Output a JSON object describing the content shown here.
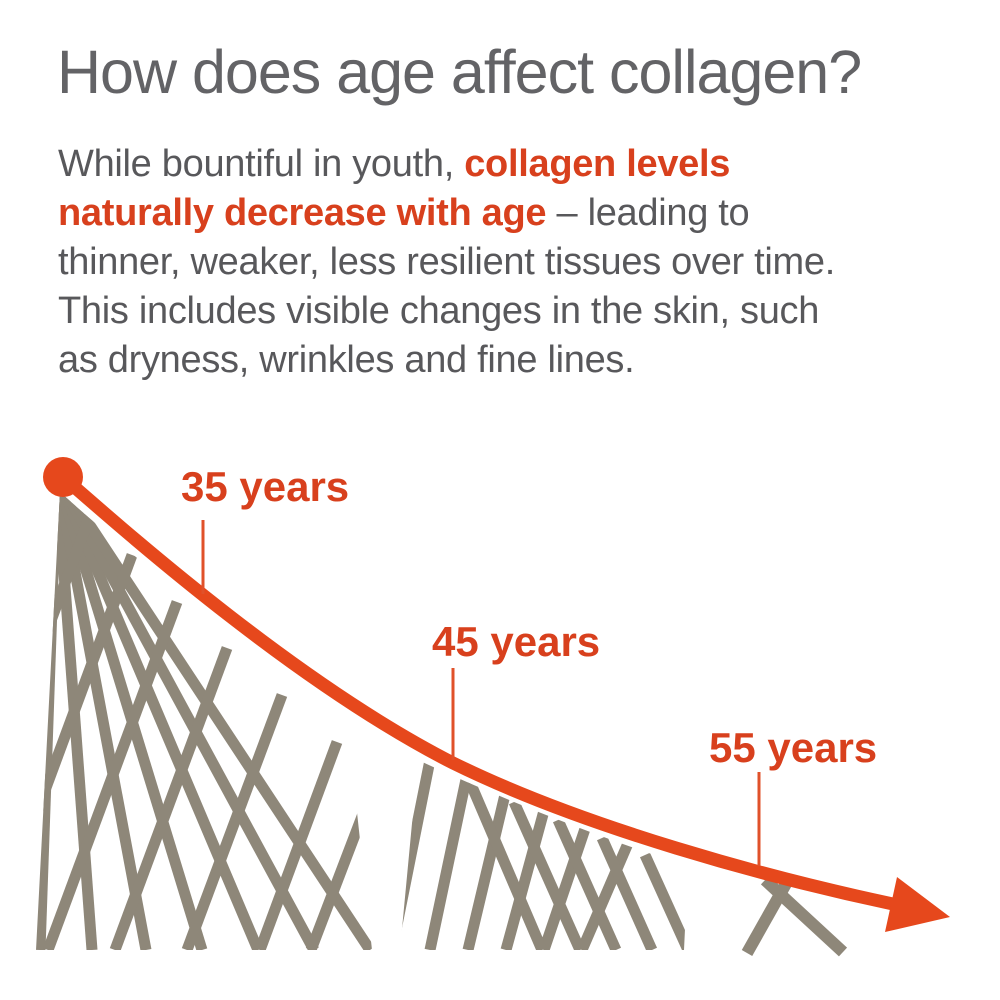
{
  "page": {
    "background": "#ffffff"
  },
  "heading": {
    "text": "How does age affect collagen?"
  },
  "intro": {
    "lines": [
      [
        {
          "t": "While bountiful in youth, ",
          "b": false
        },
        {
          "t": "collagen levels",
          "b": true
        }
      ],
      [
        {
          "t": "naturally decrease with age",
          "b": true
        },
        {
          "t": " – leading to",
          "b": false
        }
      ],
      [
        {
          "t": "thinner, weaker, less resilient tissues over time.",
          "b": false
        }
      ],
      [
        {
          "t": "This includes visible changes in the skin, such",
          "b": false
        }
      ],
      [
        {
          "t": "as dryness, wrinkles and fine lines.",
          "b": false
        }
      ]
    ]
  },
  "chart": {
    "labels": [
      {
        "text": "35 years"
      },
      {
        "text": "45 years"
      },
      {
        "text": "55 years"
      }
    ],
    "colors": {
      "accent_orange": "#e6481c",
      "label_orange": "#d8401d",
      "mesh_gray": "#8e8779",
      "heading_gray": "#636366",
      "body_gray": "#58585b"
    }
  },
  "chart_data": {
    "type": "line",
    "title": "Collagen level declining with age",
    "x_annotations": [
      "35 years",
      "45 years",
      "55 years"
    ],
    "estimated_relative_level_percent": {
      "start": 100,
      "35 years": 75,
      "45 years": 40,
      "55 years": 17,
      "end": 10
    },
    "trend": "decreasing",
    "mesh_density_strand_counts": [
      14,
      11,
      2
    ],
    "legend": "none",
    "axes": "none (stylized diagram: mesh density depicts collagen amount)"
  }
}
